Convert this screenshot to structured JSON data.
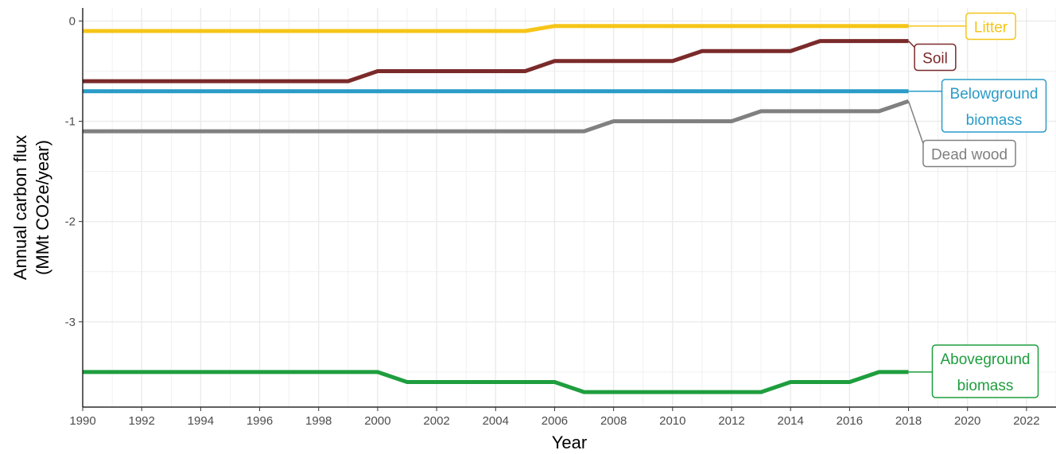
{
  "chart_data": {
    "type": "line",
    "title": "",
    "xlabel": "Year",
    "ylabel_line1": "Annual carbon flux",
    "ylabel_line2": "(MMt CO2e/year)",
    "xlim": [
      1990,
      2023
    ],
    "ylim": [
      -3.85,
      0.13
    ],
    "x_ticks": [
      1990,
      1992,
      1994,
      1996,
      1998,
      2000,
      2002,
      2004,
      2006,
      2008,
      2010,
      2012,
      2014,
      2016,
      2018,
      2020,
      2022
    ],
    "x_tick_labels": [
      "1990",
      "1992",
      "1994",
      "1996",
      "1998",
      "2000",
      "2002",
      "2004",
      "2006",
      "2008",
      "2010",
      "2012",
      "2014",
      "2016",
      "2018",
      "2020",
      "2022"
    ],
    "y_ticks": [
      0,
      -1,
      -2,
      -3
    ],
    "y_tick_labels": [
      "0",
      "-1",
      "-2",
      "-3"
    ],
    "grid": true,
    "legend": "direct labels at right end of lines",
    "x": [
      1990,
      1991,
      1992,
      1993,
      1994,
      1995,
      1996,
      1997,
      1998,
      1999,
      2000,
      2001,
      2002,
      2003,
      2004,
      2005,
      2006,
      2007,
      2008,
      2009,
      2010,
      2011,
      2012,
      2013,
      2014,
      2015,
      2016,
      2017,
      2018
    ],
    "series": [
      {
        "name": "Litter",
        "label_lines": [
          "Litter"
        ],
        "color": "#F5C518",
        "values": [
          -0.1,
          -0.1,
          -0.1,
          -0.1,
          -0.1,
          -0.1,
          -0.1,
          -0.1,
          -0.1,
          -0.1,
          -0.1,
          -0.1,
          -0.1,
          -0.1,
          -0.1,
          -0.1,
          -0.05,
          -0.05,
          -0.05,
          -0.05,
          -0.05,
          -0.05,
          -0.05,
          -0.05,
          -0.05,
          -0.05,
          -0.05,
          -0.05,
          -0.05
        ]
      },
      {
        "name": "Soil",
        "label_lines": [
          "Soil"
        ],
        "color": "#7B2A2A",
        "values": [
          -0.6,
          -0.6,
          -0.6,
          -0.6,
          -0.6,
          -0.6,
          -0.6,
          -0.6,
          -0.6,
          -0.6,
          -0.5,
          -0.5,
          -0.5,
          -0.5,
          -0.5,
          -0.5,
          -0.4,
          -0.4,
          -0.4,
          -0.4,
          -0.4,
          -0.3,
          -0.3,
          -0.3,
          -0.3,
          -0.2,
          -0.2,
          -0.2,
          -0.2
        ]
      },
      {
        "name": "Belowground biomass",
        "label_lines": [
          "Belowground",
          "biomass"
        ],
        "color": "#2A9BC8",
        "values": [
          -0.7,
          -0.7,
          -0.7,
          -0.7,
          -0.7,
          -0.7,
          -0.7,
          -0.7,
          -0.7,
          -0.7,
          -0.7,
          -0.7,
          -0.7,
          -0.7,
          -0.7,
          -0.7,
          -0.7,
          -0.7,
          -0.7,
          -0.7,
          -0.7,
          -0.7,
          -0.7,
          -0.7,
          -0.7,
          -0.7,
          -0.7,
          -0.7,
          -0.7
        ]
      },
      {
        "name": "Dead wood",
        "label_lines": [
          "Dead wood"
        ],
        "color": "#808080",
        "values": [
          -1.1,
          -1.1,
          -1.1,
          -1.1,
          -1.1,
          -1.1,
          -1.1,
          -1.1,
          -1.1,
          -1.1,
          -1.1,
          -1.1,
          -1.1,
          -1.1,
          -1.1,
          -1.1,
          -1.1,
          -1.1,
          -1.0,
          -1.0,
          -1.0,
          -1.0,
          -1.0,
          -0.9,
          -0.9,
          -0.9,
          -0.9,
          -0.9,
          -0.8
        ]
      },
      {
        "name": "Aboveground biomass",
        "label_lines": [
          "Aboveground",
          "biomass"
        ],
        "color": "#1E9E3E",
        "values": [
          -3.5,
          -3.5,
          -3.5,
          -3.5,
          -3.5,
          -3.5,
          -3.5,
          -3.5,
          -3.5,
          -3.5,
          -3.5,
          -3.6,
          -3.6,
          -3.6,
          -3.6,
          -3.6,
          -3.6,
          -3.7,
          -3.7,
          -3.7,
          -3.7,
          -3.7,
          -3.7,
          -3.7,
          -3.6,
          -3.6,
          -3.6,
          -3.5,
          -3.5
        ]
      }
    ]
  }
}
